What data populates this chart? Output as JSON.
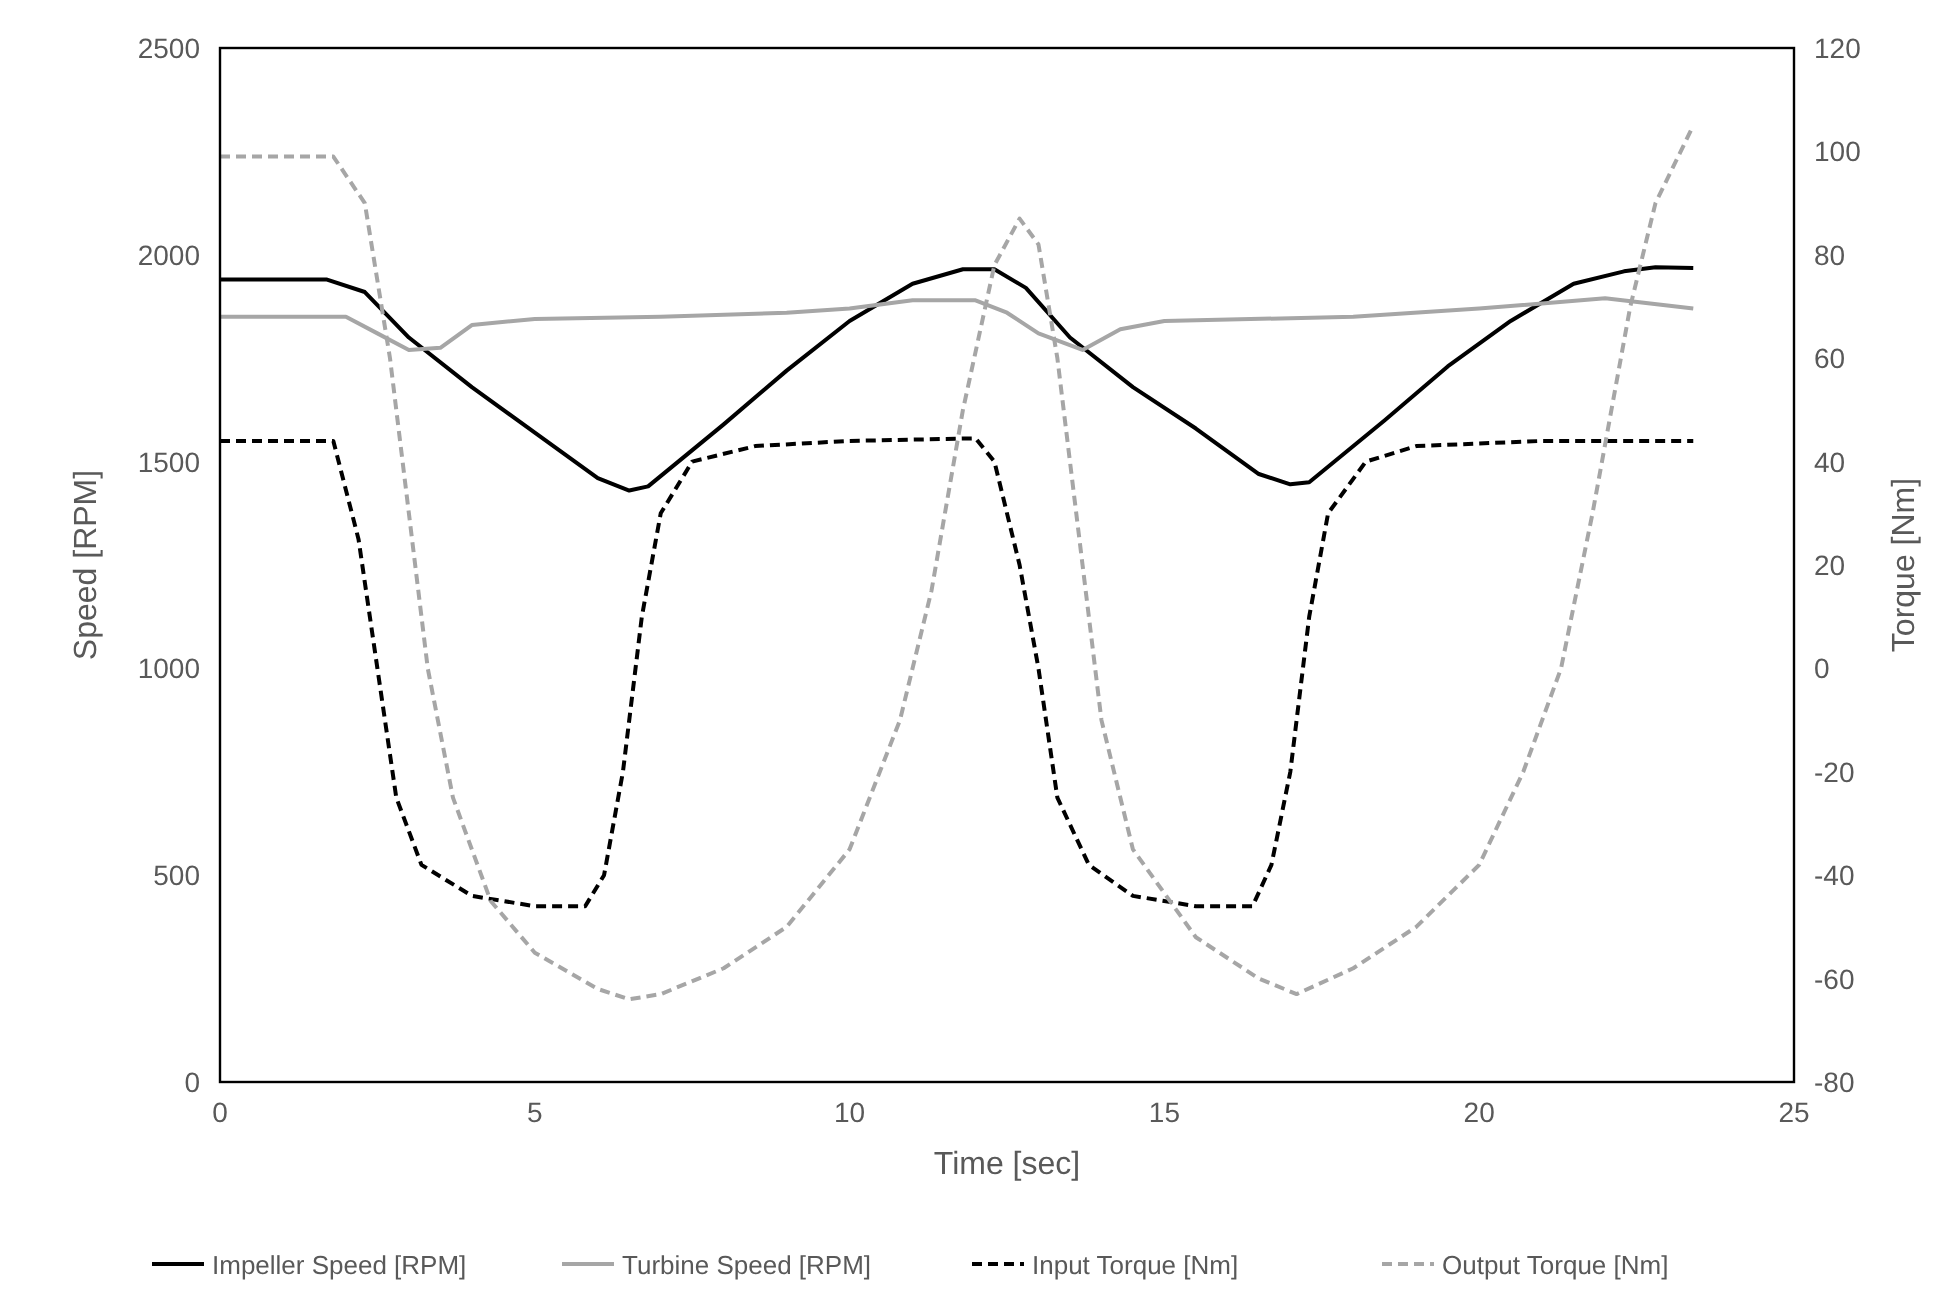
{
  "chart_data": {
    "type": "line",
    "xlabel": "Time [sec]",
    "ylabel": "Speed [RPM]",
    "y2label": "Torque [Nm]",
    "xlim": [
      0,
      25
    ],
    "xticks": [
      0,
      5,
      10,
      15,
      20,
      25
    ],
    "ylim": [
      0,
      2500
    ],
    "yticks": [
      0,
      500,
      1000,
      1500,
      2000,
      2500
    ],
    "y2lim": [
      -80,
      120
    ],
    "y2ticks": [
      -80,
      -60,
      -40,
      -20,
      0,
      20,
      40,
      60,
      80,
      100,
      120
    ],
    "legend": "bottom",
    "series": [
      {
        "name": "Impeller Speed [RPM]",
        "color": "#000000",
        "line_style": "solid",
        "x": [
          0,
          1.7,
          2.3,
          3,
          4,
          5,
          6,
          6.5,
          6.8,
          8,
          9,
          10,
          11,
          11.8,
          12.3,
          12.8,
          13.5,
          14.5,
          15.5,
          16.5,
          17,
          17.3,
          18.5,
          19.5,
          20.5,
          21.5,
          22.3,
          22.8,
          23.4
        ],
        "values": [
          1940,
          1940,
          1910,
          1800,
          1680,
          1570,
          1460,
          1430,
          1440,
          1590,
          1720,
          1840,
          1930,
          1965,
          1965,
          1920,
          1800,
          1680,
          1580,
          1470,
          1445,
          1450,
          1600,
          1730,
          1840,
          1930,
          1960,
          1970,
          1968
        ]
      },
      {
        "name": "Turbine Speed [RPM]",
        "color": "#a6a6a6",
        "line_style": "solid",
        "x": [
          0,
          2,
          2.5,
          3,
          3.5,
          4,
          5,
          7,
          9,
          10,
          11,
          12,
          12.5,
          13,
          13.7,
          14.3,
          15,
          18,
          20,
          22,
          23.4
        ],
        "values": [
          1850,
          1850,
          1810,
          1770,
          1775,
          1830,
          1845,
          1850,
          1860,
          1870,
          1890,
          1890,
          1860,
          1810,
          1770,
          1820,
          1840,
          1850,
          1870,
          1895,
          1870
        ]
      },
      {
        "name": "Input Torque [Nm]",
        "color": "#000000",
        "line_style": "dashed",
        "axis": "y2",
        "x": [
          0,
          1.8,
          2.2,
          2.5,
          2.8,
          3.2,
          4,
          5,
          5.8,
          6.1,
          6.4,
          6.7,
          7,
          7.5,
          8.5,
          10,
          12,
          12.3,
          12.7,
          13,
          13.3,
          13.8,
          14.5,
          15.5,
          16.4,
          16.7,
          17,
          17.3,
          17.6,
          18.2,
          19,
          21,
          23.4
        ],
        "values": [
          44,
          44,
          25,
          0,
          -25,
          -38,
          -44,
          -46,
          -46,
          -40,
          -20,
          10,
          30,
          40,
          43,
          44,
          44.5,
          40,
          20,
          0,
          -25,
          -38,
          -44,
          -46,
          -46,
          -38,
          -20,
          10,
          30,
          40,
          43,
          44,
          44
        ]
      },
      {
        "name": "Output Torque [Nm]",
        "color": "#a6a6a6",
        "line_style": "dashed",
        "axis": "y2",
        "x": [
          0,
          1.8,
          2.3,
          2.7,
          3,
          3.3,
          3.7,
          4.3,
          5,
          6,
          6.5,
          7,
          8,
          9,
          10,
          10.8,
          11.3,
          11.8,
          12.3,
          12.7,
          13,
          13.3,
          13.7,
          14,
          14.5,
          15.5,
          16.5,
          17.1,
          18,
          19,
          20,
          20.7,
          21.3,
          21.8,
          22.4,
          22.8,
          23.4
        ],
        "values": [
          99,
          99,
          90,
          60,
          30,
          0,
          -25,
          -45,
          -55,
          -62,
          -64,
          -63,
          -58,
          -50,
          -35,
          -10,
          15,
          50,
          78,
          87,
          82,
          60,
          20,
          -10,
          -35,
          -52,
          -60,
          -63,
          -58,
          -50,
          -38,
          -20,
          0,
          30,
          70,
          90,
          105
        ]
      }
    ]
  }
}
